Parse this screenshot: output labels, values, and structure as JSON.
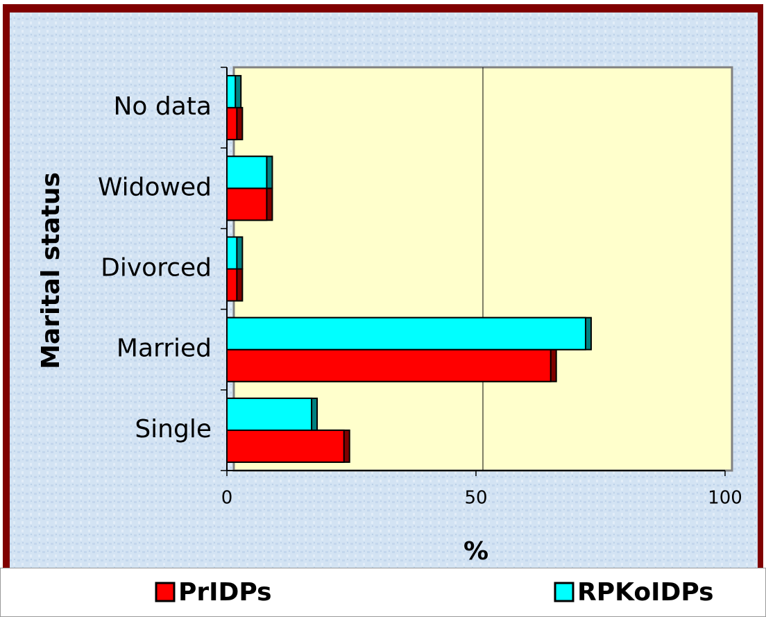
{
  "chart_data": {
    "type": "hbar",
    "xlabel": "%",
    "ylabel": "Marital status",
    "categories": [
      "Single",
      "Married",
      "Divorced",
      "Widowed",
      "No data"
    ],
    "series": [
      {
        "name": "PrIDPs",
        "color": "#ff0000",
        "values": [
          23.5,
          65,
          2,
          8,
          2
        ]
      },
      {
        "name": "RPKoIDPs",
        "color": "#00ffff",
        "values": [
          17,
          72,
          2,
          8,
          1.7
        ]
      }
    ],
    "xlim": [
      0,
      100
    ],
    "xticks": [
      0,
      50,
      100
    ],
    "grid": true,
    "legend": "bottom"
  }
}
